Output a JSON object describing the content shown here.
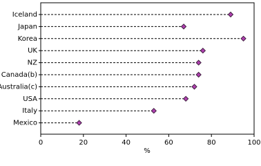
{
  "chart_data": {
    "type": "dot",
    "categories": [
      "Iceland",
      "Japan",
      "Korea",
      "UK",
      "NZ",
      "Canada(b)",
      "Australia(c)",
      "USA",
      "Italy",
      "Mexico"
    ],
    "values": [
      89,
      67,
      95,
      76,
      74,
      74,
      72,
      68,
      53,
      18
    ],
    "color": "#b040b0",
    "x_label": "%",
    "xlim": [
      0,
      100
    ],
    "xticks": [
      0,
      20,
      40,
      60,
      80,
      100
    ]
  }
}
